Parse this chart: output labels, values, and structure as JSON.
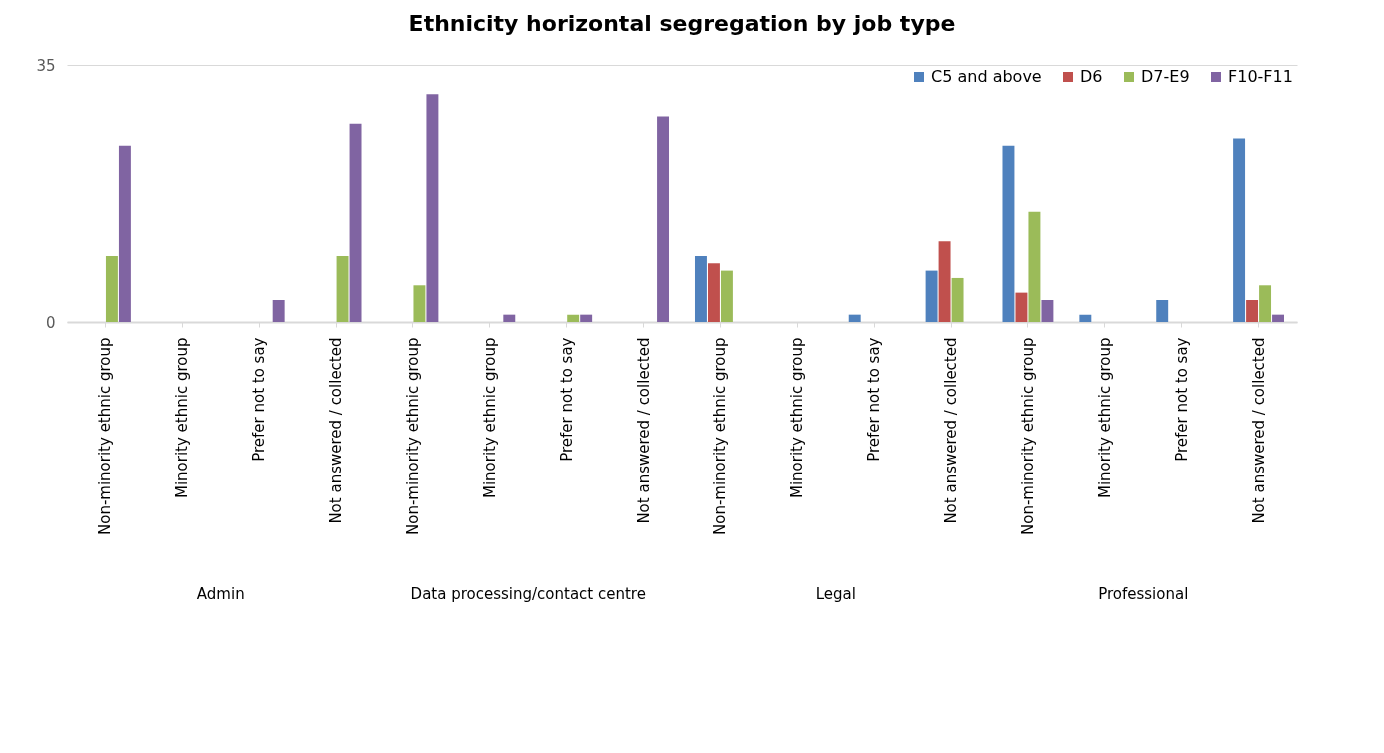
{
  "chart_data": {
    "type": "bar",
    "title": "Ethnicity horizontal segregation by job type",
    "categories": [
      "Non-minority ethnic group",
      "Minority ethnic group",
      "Prefer not to say",
      "Not answered / collected",
      "Non-minority ethnic group",
      "Minority ethnic group",
      "Prefer not to say",
      "Not answered / collected",
      "Non-minority ethnic group",
      "Minority ethnic group",
      "Prefer not to say",
      "Not answered / collected",
      "Non-minority ethnic group",
      "Minority ethnic group",
      "Prefer not to say",
      "Not answered / collected"
    ],
    "annotations": [
      "Admin",
      "Data processing/contact centre",
      "Legal",
      "Professional"
    ],
    "ylim": [
      0,
      35
    ],
    "yticks": [
      0,
      35
    ],
    "grid": "y",
    "legend": "top right",
    "series": [
      {
        "name": "C5 and above",
        "color": "#4f81bd",
        "values": [
          0,
          0,
          0,
          0,
          0,
          0,
          0,
          0,
          9,
          0,
          1,
          7,
          24,
          1,
          3,
          25
        ]
      },
      {
        "name": "D6",
        "color": "#c0504d",
        "values": [
          0,
          0,
          0,
          0,
          0,
          0,
          0,
          0,
          8,
          0,
          0,
          11,
          4,
          0,
          0,
          3
        ]
      },
      {
        "name": "D7-E9",
        "color": "#9bbb59",
        "values": [
          9,
          0,
          0,
          9,
          5,
          0,
          1,
          0,
          7,
          0,
          0,
          6,
          15,
          0,
          0,
          5
        ]
      },
      {
        "name": "F10-F11",
        "color": "#8064a2",
        "values": [
          24,
          0,
          3,
          27,
          31,
          1,
          1,
          28,
          0,
          0,
          0,
          0,
          3,
          0,
          0,
          1
        ]
      }
    ]
  }
}
